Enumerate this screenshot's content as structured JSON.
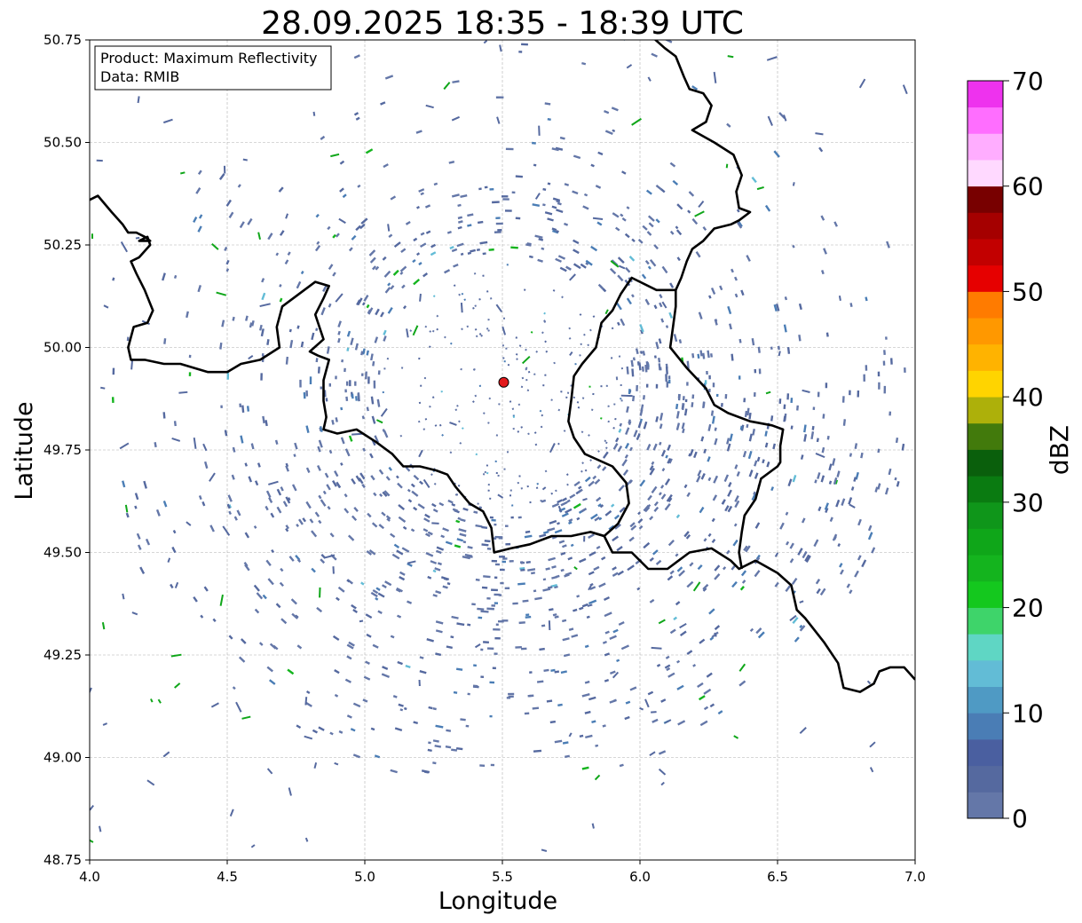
{
  "title": "28.09.2025 18:35 - 18:39 UTC",
  "xlabel": "Longitude",
  "ylabel": "Latitude",
  "xlim": [
    4.0,
    7.0
  ],
  "ylim": [
    48.75,
    50.75
  ],
  "xticks": [
    "4.0",
    "4.5",
    "5.0",
    "5.5",
    "6.0",
    "6.5",
    "7.0"
  ],
  "yticks": [
    "48.75",
    "49.00",
    "49.25",
    "49.50",
    "49.75",
    "50.00",
    "50.25",
    "50.50",
    "50.75"
  ],
  "grid": true,
  "info_box": {
    "product": "Product: Maximum Reflectivity",
    "data": "Data: RMIB",
    "placement": "top-left"
  },
  "radar_site": {
    "lon": 5.505,
    "lat": 49.915,
    "color": "#e31a1c"
  },
  "colorbar": {
    "label": "dBZ",
    "min": 0,
    "max": 70,
    "step": 2.5,
    "ticks": [
      "0",
      "10",
      "20",
      "30",
      "40",
      "50",
      "60",
      "70"
    ],
    "colors": [
      "#6477a8",
      "#55699f",
      "#4a5fa0",
      "#4a7db5",
      "#4f9ac4",
      "#62bcd6",
      "#5fd6c4",
      "#3ed46a",
      "#14c81e",
      "#14b41e",
      "#0fa619",
      "#0f961a",
      "#0a7b11",
      "#0a5f0c",
      "#427a0c",
      "#adb00a",
      "#ffd400",
      "#ffb300",
      "#ff9800",
      "#ff7b00",
      "#e60000",
      "#c20000",
      "#a50000",
      "#780000",
      "#ffd9ff",
      "#ffadff",
      "#ff6eff",
      "#ee32ee"
    ]
  },
  "borders": [
    [
      [
        4.0,
        50.36
      ],
      [
        4.03,
        50.37
      ],
      [
        4.08,
        50.33
      ],
      [
        4.12,
        50.3
      ],
      [
        4.14,
        50.28
      ],
      [
        4.17,
        50.28
      ],
      [
        4.2,
        50.27
      ],
      [
        4.22,
        50.26
      ],
      [
        4.18,
        50.26
      ],
      [
        4.21,
        50.27
      ],
      [
        4.22,
        50.25
      ],
      [
        4.18,
        50.22
      ],
      [
        4.15,
        50.21
      ],
      [
        4.17,
        50.18
      ],
      [
        4.2,
        50.14
      ],
      [
        4.23,
        50.09
      ],
      [
        4.21,
        50.06
      ],
      [
        4.16,
        50.05
      ],
      [
        4.14,
        50.0
      ],
      [
        4.15,
        49.97
      ],
      [
        4.2,
        49.97
      ],
      [
        4.27,
        49.96
      ],
      [
        4.33,
        49.96
      ],
      [
        4.38,
        49.95
      ],
      [
        4.43,
        49.94
      ],
      [
        4.5,
        49.94
      ],
      [
        4.55,
        49.96
      ],
      [
        4.62,
        49.97
      ],
      [
        4.69,
        50.0
      ],
      [
        4.68,
        50.05
      ],
      [
        4.7,
        50.1
      ],
      [
        4.76,
        50.13
      ],
      [
        4.82,
        50.16
      ],
      [
        4.87,
        50.15
      ],
      [
        4.85,
        50.12
      ],
      [
        4.82,
        50.08
      ],
      [
        4.85,
        50.02
      ],
      [
        4.8,
        49.99
      ],
      [
        4.83,
        49.98
      ],
      [
        4.87,
        49.97
      ],
      [
        4.85,
        49.92
      ],
      [
        4.85,
        49.87
      ],
      [
        4.86,
        49.83
      ],
      [
        4.85,
        49.8
      ],
      [
        4.9,
        49.79
      ],
      [
        4.97,
        49.8
      ],
      [
        5.04,
        49.77
      ],
      [
        5.1,
        49.74
      ],
      [
        5.14,
        49.71
      ],
      [
        5.2,
        49.71
      ],
      [
        5.26,
        49.7
      ],
      [
        5.3,
        49.69
      ],
      [
        5.33,
        49.66
      ],
      [
        5.38,
        49.62
      ],
      [
        5.43,
        49.6
      ],
      [
        5.46,
        49.56
      ],
      [
        5.47,
        49.5
      ],
      [
        5.53,
        49.51
      ],
      [
        5.6,
        49.52
      ],
      [
        5.68,
        49.54
      ],
      [
        5.75,
        49.54
      ],
      [
        5.82,
        49.55
      ],
      [
        5.87,
        49.54
      ],
      [
        5.9,
        49.5
      ],
      [
        5.97,
        49.5
      ],
      [
        6.03,
        49.46
      ],
      [
        6.1,
        49.46
      ],
      [
        6.18,
        49.5
      ],
      [
        6.26,
        49.51
      ],
      [
        6.33,
        49.48
      ],
      [
        6.36,
        49.46
      ],
      [
        6.42,
        49.48
      ],
      [
        6.5,
        49.45
      ],
      [
        6.55,
        49.42
      ],
      [
        6.57,
        49.36
      ],
      [
        6.6,
        49.34
      ],
      [
        6.67,
        49.28
      ],
      [
        6.72,
        49.23
      ],
      [
        6.74,
        49.17
      ],
      [
        6.8,
        49.16
      ],
      [
        6.85,
        49.18
      ],
      [
        6.87,
        49.21
      ],
      [
        6.91,
        49.22
      ],
      [
        6.96,
        49.22
      ],
      [
        7.0,
        49.19
      ]
    ],
    [
      [
        6.04,
        50.76
      ],
      [
        6.09,
        50.73
      ],
      [
        6.13,
        50.71
      ],
      [
        6.16,
        50.66
      ],
      [
        6.18,
        50.63
      ],
      [
        6.23,
        50.62
      ],
      [
        6.26,
        50.59
      ],
      [
        6.24,
        50.55
      ],
      [
        6.19,
        50.53
      ],
      [
        6.27,
        50.5
      ],
      [
        6.34,
        50.47
      ],
      [
        6.37,
        50.42
      ],
      [
        6.35,
        50.38
      ],
      [
        6.36,
        50.34
      ],
      [
        6.4,
        50.33
      ],
      [
        6.36,
        50.31
      ],
      [
        6.33,
        50.3
      ],
      [
        6.27,
        50.29
      ],
      [
        6.23,
        50.26
      ],
      [
        6.19,
        50.24
      ],
      [
        6.17,
        50.21
      ],
      [
        6.15,
        50.17
      ],
      [
        6.13,
        50.14
      ],
      [
        6.06,
        50.14
      ],
      [
        5.97,
        50.17
      ],
      [
        5.93,
        50.13
      ],
      [
        5.9,
        50.09
      ],
      [
        5.86,
        50.06
      ],
      [
        5.84,
        50.0
      ],
      [
        5.79,
        49.96
      ],
      [
        5.76,
        49.93
      ],
      [
        5.75,
        49.87
      ],
      [
        5.74,
        49.82
      ],
      [
        5.76,
        49.78
      ],
      [
        5.8,
        49.74
      ],
      [
        5.9,
        49.71
      ],
      [
        5.95,
        49.67
      ],
      [
        5.96,
        49.62
      ],
      [
        5.92,
        49.57
      ],
      [
        5.87,
        49.54
      ],
      [
        5.82,
        49.55
      ]
    ],
    [
      [
        6.13,
        50.14
      ],
      [
        6.13,
        50.1
      ],
      [
        6.12,
        50.05
      ],
      [
        6.11,
        50.0
      ],
      [
        6.17,
        49.95
      ],
      [
        6.24,
        49.9
      ],
      [
        6.27,
        49.86
      ],
      [
        6.32,
        49.84
      ],
      [
        6.4,
        49.82
      ],
      [
        6.48,
        49.81
      ],
      [
        6.52,
        49.8
      ],
      [
        6.51,
        49.76
      ],
      [
        6.51,
        49.72
      ],
      [
        6.5,
        49.71
      ],
      [
        6.44,
        49.68
      ],
      [
        6.42,
        49.63
      ],
      [
        6.38,
        49.59
      ],
      [
        6.37,
        49.55
      ],
      [
        6.36,
        49.5
      ],
      [
        6.37,
        49.46
      ]
    ]
  ]
}
